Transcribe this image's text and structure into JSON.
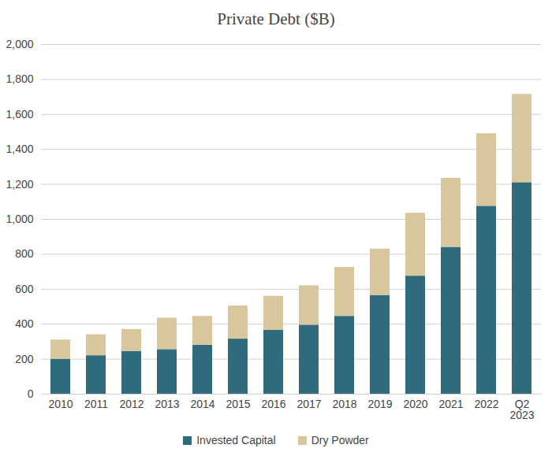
{
  "chart_data": {
    "type": "bar",
    "title": "Private Debt ($B)",
    "categories": [
      "2010",
      "2011",
      "2012",
      "2013",
      "2014",
      "2015",
      "2016",
      "2017",
      "2018",
      "2019",
      "2020",
      "2021",
      "2022",
      "Q2 2023"
    ],
    "series": [
      {
        "name": "Invested Capital",
        "color": "#2f6b7d",
        "values": [
          200,
          220,
          245,
          255,
          280,
          315,
          365,
          395,
          445,
          565,
          675,
          840,
          1075,
          1210
        ]
      },
      {
        "name": "Dry Powder",
        "color": "#d8c69d",
        "values": [
          110,
          120,
          125,
          180,
          165,
          190,
          195,
          225,
          280,
          265,
          360,
          395,
          415,
          505
        ]
      }
    ],
    "ylim": [
      0,
      2000
    ],
    "yticks": [
      0,
      200,
      400,
      600,
      800,
      1000,
      1200,
      1400,
      1600,
      1800,
      2000
    ],
    "grid": true,
    "stacked": true,
    "legend": "bottom"
  }
}
